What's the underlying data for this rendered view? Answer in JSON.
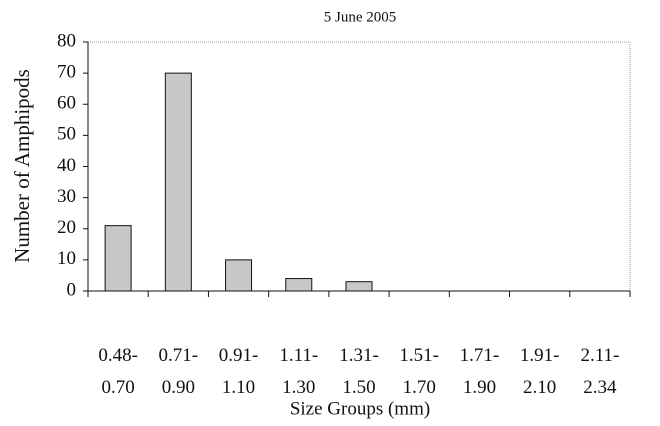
{
  "chart_data": {
    "type": "bar",
    "title": "5 June 2005",
    "x_label": "Size Groups (mm)",
    "y_label": "Number of Amphipods",
    "categories": [
      "0.48- 0.70",
      "0.71- 0.90",
      "0.91- 1.10",
      "1.11- 1.30",
      "1.31- 1.50",
      "1.51- 1.70",
      "1.71- 1.90",
      "1.91- 2.10",
      "2.11- 2.34"
    ],
    "values": [
      21,
      70,
      10,
      4,
      3,
      0,
      0,
      0,
      0
    ],
    "color": "#c8c8c8",
    "ylim": [
      0,
      80
    ],
    "yticks": [
      0,
      10,
      20,
      30,
      40,
      50,
      60,
      70,
      80
    ],
    "grid": false
  }
}
